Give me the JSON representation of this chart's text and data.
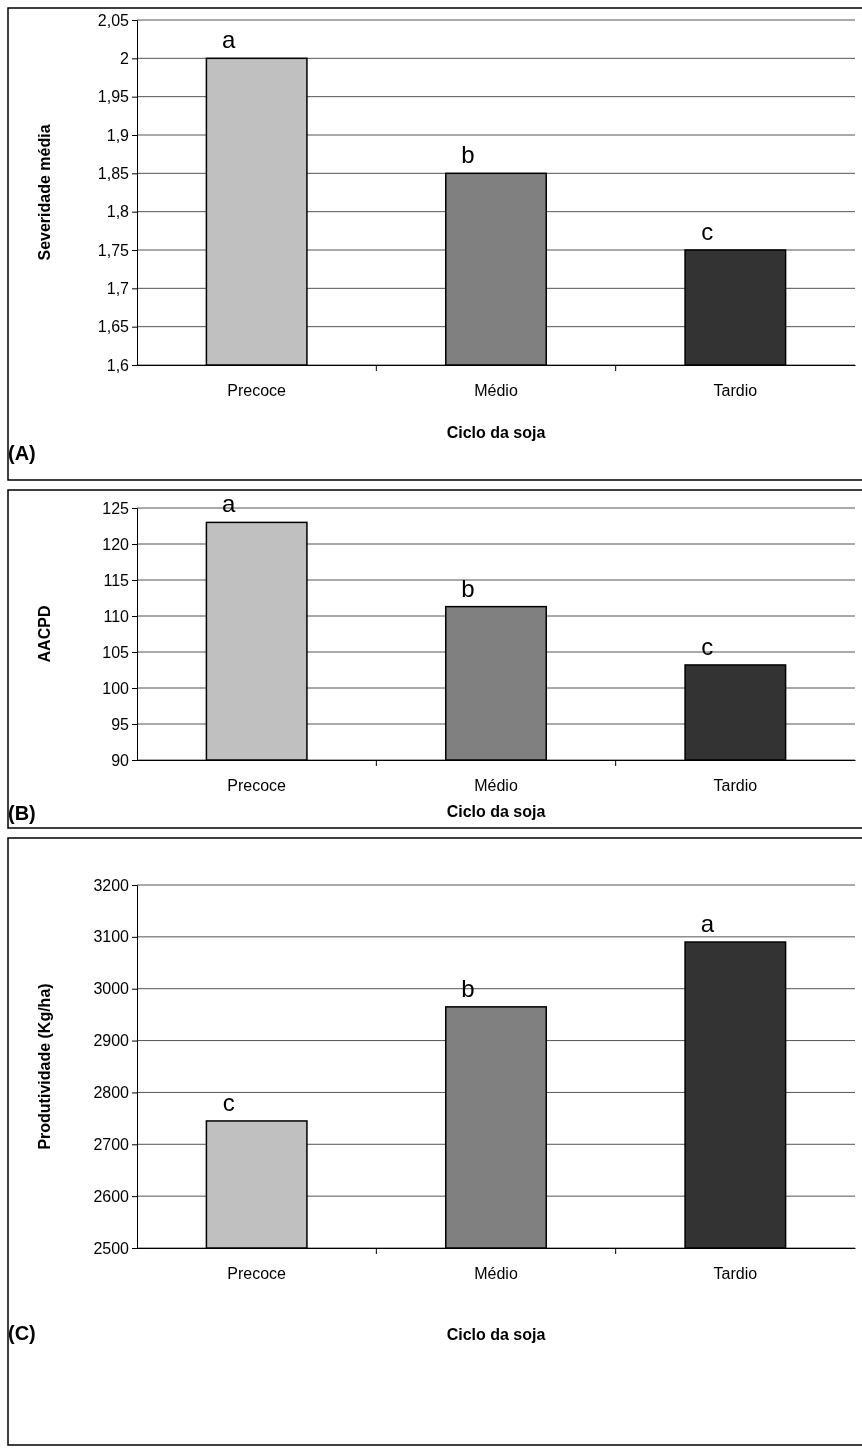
{
  "chart_data": [
    {
      "type": "bar",
      "xlabel": "Ciclo da soja",
      "ylabel": "Severidade média",
      "categories": [
        "Precoce",
        "Médio",
        "Tardio"
      ],
      "values": [
        2.0,
        1.85,
        1.75
      ],
      "colors": [
        "#c0c0c0",
        "#808080",
        "#333333"
      ],
      "ylim": [
        1.6,
        2.05
      ],
      "yticks": [
        {
          "value": 1.6,
          "label": "1,6"
        },
        {
          "value": 1.65,
          "label": "1,65"
        },
        {
          "value": 1.7,
          "label": "1,7"
        },
        {
          "value": 1.75,
          "label": "1,75"
        },
        {
          "value": 1.8,
          "label": "1,8"
        },
        {
          "value": 1.85,
          "label": "1,85"
        },
        {
          "value": 1.9,
          "label": "1,9"
        },
        {
          "value": 1.95,
          "label": "1,95"
        },
        {
          "value": 2,
          "label": "2"
        },
        {
          "value": 2.05,
          "label": "2,05"
        }
      ],
      "grid": "y",
      "annotations": [
        {
          "text": "a",
          "x": "Precoce",
          "y": 2.0
        },
        {
          "text": "b",
          "x": "Médio",
          "y": 1.85
        },
        {
          "text": "c",
          "x": "Tardio",
          "y": 1.75
        },
        "(A)"
      ]
    },
    {
      "type": "bar",
      "xlabel": "Ciclo da soja",
      "ylabel": "AACPD",
      "categories": [
        "Precoce",
        "Médio",
        "Tardio"
      ],
      "values": [
        123,
        111.3,
        103.2
      ],
      "colors": [
        "#c0c0c0",
        "#808080",
        "#333333"
      ],
      "ylim": [
        90,
        125
      ],
      "yticks": [
        90,
        95,
        100,
        105,
        110,
        115,
        120,
        125
      ],
      "grid": "y",
      "annotations": [
        {
          "text": "a",
          "x": "Precoce",
          "y": 123
        },
        {
          "text": "b",
          "x": "Médio",
          "y": 111.3
        },
        {
          "text": "c",
          "x": "Tardio",
          "y": 103.2
        },
        "(B)"
      ]
    },
    {
      "type": "bar",
      "xlabel": "Ciclo da soja",
      "ylabel": "Produtividade (Kg/ha)",
      "categories": [
        "Precoce",
        "Médio",
        "Tardio"
      ],
      "values": [
        2745,
        2965,
        3090
      ],
      "colors": [
        "#c0c0c0",
        "#808080",
        "#333333"
      ],
      "ylim": [
        2500,
        3200
      ],
      "yticks": [
        2500,
        2600,
        2700,
        2800,
        2900,
        3000,
        3100,
        3200
      ],
      "grid": "y",
      "annotations": [
        {
          "text": "a",
          "x": "Tardio",
          "y": 3090
        },
        {
          "text": "b",
          "x": "Médio",
          "y": 2965
        },
        {
          "text": "c",
          "x": "Precoce",
          "y": 2745
        },
        "(C)"
      ]
    }
  ]
}
